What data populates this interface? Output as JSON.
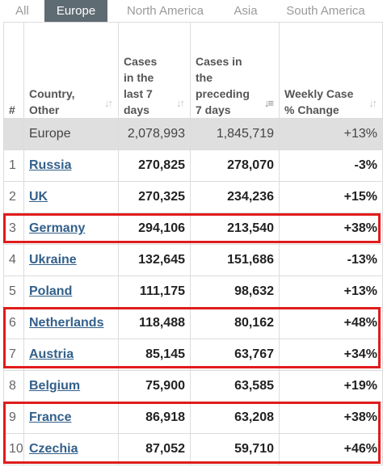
{
  "tabs": [
    {
      "label": "All",
      "active": false
    },
    {
      "label": "Europe",
      "active": true
    },
    {
      "label": "North America",
      "active": false
    },
    {
      "label": "Asia",
      "active": false
    },
    {
      "label": "South America",
      "active": false
    }
  ],
  "table": {
    "headers": {
      "index": "#",
      "country": "Country, Other",
      "cases_last7": "Cases in the last 7 days",
      "cases_preceding7": "Cases in the preceding 7 days",
      "weekly_change": "Weekly Case % Change"
    },
    "total": {
      "country": "Europe",
      "cases_last7": "2,078,993",
      "cases_preceding7": "1,845,719",
      "weekly_change": "+13%"
    },
    "rows": [
      {
        "index": "1",
        "country": "Russia",
        "cases_last7": "270,825",
        "cases_preceding7": "278,070",
        "weekly_change": "-3%"
      },
      {
        "index": "2",
        "country": "UK",
        "cases_last7": "270,325",
        "cases_preceding7": "234,236",
        "weekly_change": "+15%"
      },
      {
        "index": "3",
        "country": "Germany",
        "cases_last7": "294,106",
        "cases_preceding7": "213,540",
        "weekly_change": "+38%"
      },
      {
        "index": "4",
        "country": "Ukraine",
        "cases_last7": "132,645",
        "cases_preceding7": "151,686",
        "weekly_change": "-13%"
      },
      {
        "index": "5",
        "country": "Poland",
        "cases_last7": "111,175",
        "cases_preceding7": "98,632",
        "weekly_change": "+13%"
      },
      {
        "index": "6",
        "country": "Netherlands",
        "cases_last7": "118,488",
        "cases_preceding7": "80,162",
        "weekly_change": "+48%"
      },
      {
        "index": "7",
        "country": "Austria",
        "cases_last7": "85,145",
        "cases_preceding7": "63,767",
        "weekly_change": "+34%"
      },
      {
        "index": "8",
        "country": "Belgium",
        "cases_last7": "75,900",
        "cases_preceding7": "63,585",
        "weekly_change": "+19%"
      },
      {
        "index": "9",
        "country": "France",
        "cases_last7": "86,918",
        "cases_preceding7": "63,208",
        "weekly_change": "+38%"
      },
      {
        "index": "10",
        "country": "Czechia",
        "cases_last7": "87,052",
        "cases_preceding7": "59,710",
        "weekly_change": "+46%"
      }
    ]
  },
  "colors": {
    "active_tab": "#5f6b73",
    "link": "#33608a",
    "highlight": "#e01c1c",
    "total_row": "#dfdfdf"
  },
  "icons": {
    "sort": "sort-arrows-icon"
  }
}
